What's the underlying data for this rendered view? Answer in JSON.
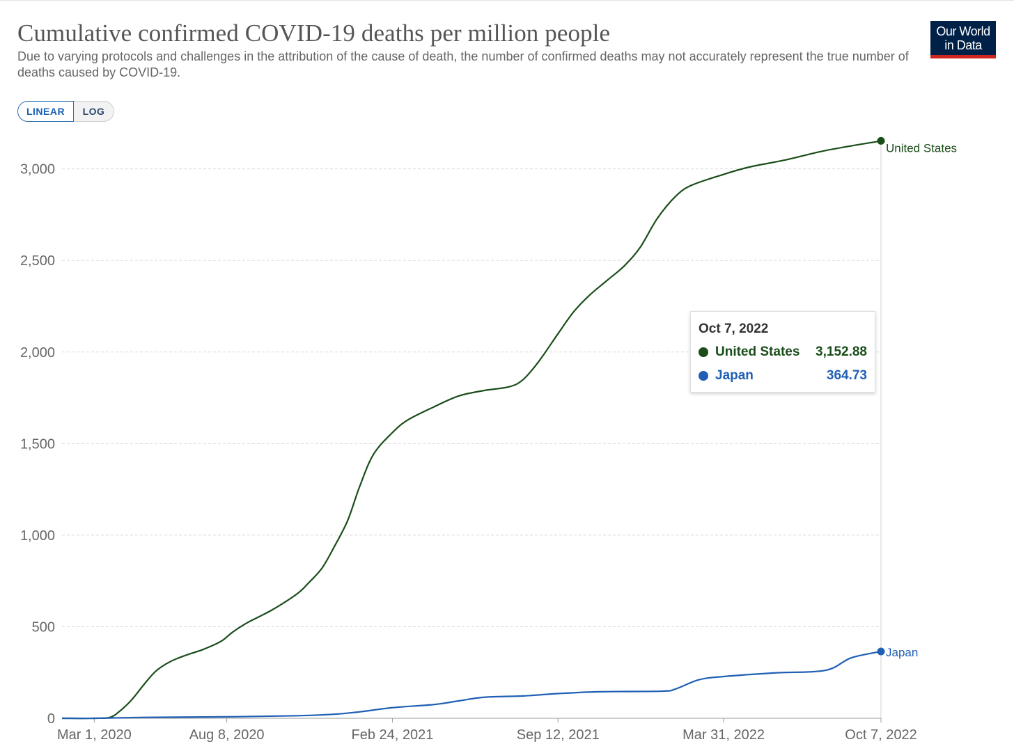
{
  "header": {
    "title": "Cumulative confirmed COVID-19 deaths per million people",
    "subtitle": "Due to varying protocols and challenges in the attribution of the cause of death, the number of confirmed deaths may not accurately represent the true number of deaths caused by COVID-19."
  },
  "logo": {
    "line1": "Our World",
    "line2": "in Data"
  },
  "scale_toggle": {
    "linear_label": "LINEAR",
    "log_label": "LOG",
    "selected": "LINEAR"
  },
  "tooltip": {
    "date": "Oct 7, 2022",
    "rows": [
      {
        "name": "United States",
        "value": "3,152.88",
        "color": "#1a4d1a"
      },
      {
        "name": "Japan",
        "value": "364.73",
        "color": "#1f5fb4"
      }
    ]
  },
  "chart_data": {
    "type": "line",
    "title": "Cumulative confirmed COVID-19 deaths per million people",
    "xlabel": "",
    "ylabel": "",
    "x_range": [
      "2020-01-22",
      "2022-10-07"
    ],
    "ylim": [
      0,
      3200
    ],
    "y_ticks": [
      0,
      500,
      1000,
      1500,
      2000,
      2500,
      3000
    ],
    "y_tick_labels": [
      "0",
      "500",
      "1,000",
      "1,500",
      "2,000",
      "2,500",
      "3,000"
    ],
    "x_ticks": [
      "2020-03-01",
      "2020-08-08",
      "2021-02-24",
      "2021-09-12",
      "2022-03-31",
      "2022-10-07"
    ],
    "x_tick_labels": [
      "Mar 1, 2020",
      "Aug 8, 2020",
      "Feb 24, 2021",
      "Sep 12, 2021",
      "Mar 31, 2022",
      "Oct 7, 2022"
    ],
    "grid": "horizontal dashed",
    "legend": "inline labels at line ends",
    "series": [
      {
        "name": "United States",
        "color": "#1a4d1a",
        "points": [
          [
            "2020-01-22",
            0
          ],
          [
            "2020-03-01",
            0
          ],
          [
            "2020-03-20",
            5
          ],
          [
            "2020-04-01",
            40
          ],
          [
            "2020-04-15",
            100
          ],
          [
            "2020-05-01",
            190
          ],
          [
            "2020-05-15",
            260
          ],
          [
            "2020-06-01",
            310
          ],
          [
            "2020-06-20",
            345
          ],
          [
            "2020-07-10",
            375
          ],
          [
            "2020-08-01",
            420
          ],
          [
            "2020-08-15",
            470
          ],
          [
            "2020-09-01",
            520
          ],
          [
            "2020-10-01",
            590
          ],
          [
            "2020-11-01",
            680
          ],
          [
            "2020-11-15",
            740
          ],
          [
            "2020-12-01",
            820
          ],
          [
            "2020-12-15",
            930
          ],
          [
            "2021-01-01",
            1080
          ],
          [
            "2021-01-15",
            1260
          ],
          [
            "2021-02-01",
            1440
          ],
          [
            "2021-02-24",
            1560
          ],
          [
            "2021-03-15",
            1630
          ],
          [
            "2021-04-15",
            1700
          ],
          [
            "2021-05-15",
            1760
          ],
          [
            "2021-06-15",
            1790
          ],
          [
            "2021-07-15",
            1810
          ],
          [
            "2021-08-01",
            1850
          ],
          [
            "2021-08-20",
            1950
          ],
          [
            "2021-09-12",
            2100
          ],
          [
            "2021-10-01",
            2220
          ],
          [
            "2021-10-20",
            2310
          ],
          [
            "2021-11-10",
            2390
          ],
          [
            "2021-12-01",
            2470
          ],
          [
            "2021-12-20",
            2570
          ],
          [
            "2022-01-10",
            2730
          ],
          [
            "2022-02-01",
            2850
          ],
          [
            "2022-02-20",
            2910
          ],
          [
            "2022-03-31",
            2970
          ],
          [
            "2022-05-01",
            3010
          ],
          [
            "2022-06-15",
            3050
          ],
          [
            "2022-08-01",
            3100
          ],
          [
            "2022-10-07",
            3152.88
          ]
        ]
      },
      {
        "name": "Japan",
        "color": "#1f5fb4",
        "points": [
          [
            "2020-01-22",
            0
          ],
          [
            "2020-03-01",
            0
          ],
          [
            "2020-05-01",
            5
          ],
          [
            "2020-08-08",
            8
          ],
          [
            "2020-11-01",
            14
          ],
          [
            "2020-12-15",
            22
          ],
          [
            "2021-01-15",
            35
          ],
          [
            "2021-02-24",
            58
          ],
          [
            "2021-04-15",
            75
          ],
          [
            "2021-05-15",
            95
          ],
          [
            "2021-06-15",
            115
          ],
          [
            "2021-08-01",
            122
          ],
          [
            "2021-09-12",
            135
          ],
          [
            "2021-11-01",
            145
          ],
          [
            "2022-01-15",
            148
          ],
          [
            "2022-02-01",
            160
          ],
          [
            "2022-03-01",
            210
          ],
          [
            "2022-03-31",
            228
          ],
          [
            "2022-06-01",
            248
          ],
          [
            "2022-08-01",
            262
          ],
          [
            "2022-09-01",
            330
          ],
          [
            "2022-10-07",
            364.73
          ]
        ]
      }
    ]
  }
}
